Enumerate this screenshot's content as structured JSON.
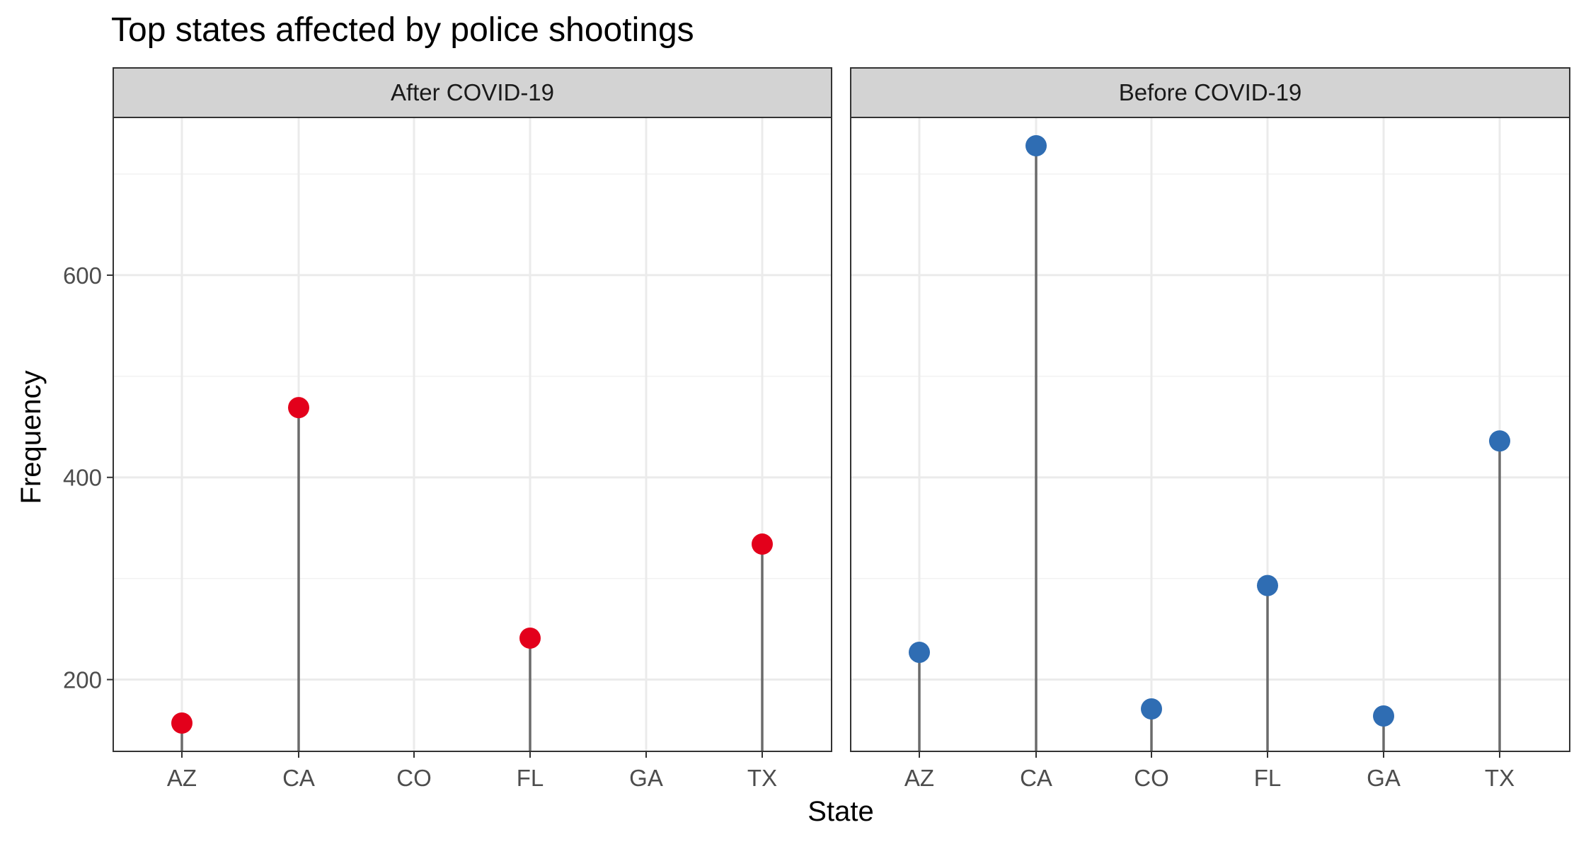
{
  "chart_data": {
    "type": "lollipop",
    "title": "Top states affected by police shootings",
    "xlabel": "State",
    "ylabel": "Frequency",
    "categories": [
      "AZ",
      "CA",
      "CO",
      "FL",
      "GA",
      "TX"
    ],
    "ylim": [
      129,
      756
    ],
    "yticks": [
      200,
      400,
      600
    ],
    "grid": true,
    "legend": "none",
    "panels": [
      {
        "name": "After COVID-19",
        "color": "#E3001B",
        "values": [
          157,
          469,
          null,
          241,
          null,
          334
        ]
      },
      {
        "name": "Before COVID-19",
        "color": "#2F6DB3",
        "values": [
          227,
          728,
          171,
          293,
          164,
          436
        ]
      }
    ],
    "colors": {
      "stem": "#6B6B6B",
      "strip_fill": "#D3D3D3",
      "panel_border": "#333333",
      "grid_major": "#EBEBEB",
      "grid_minor": "#F2F2F2",
      "axis_text": "#4D4D4D",
      "text": "#000000"
    }
  }
}
